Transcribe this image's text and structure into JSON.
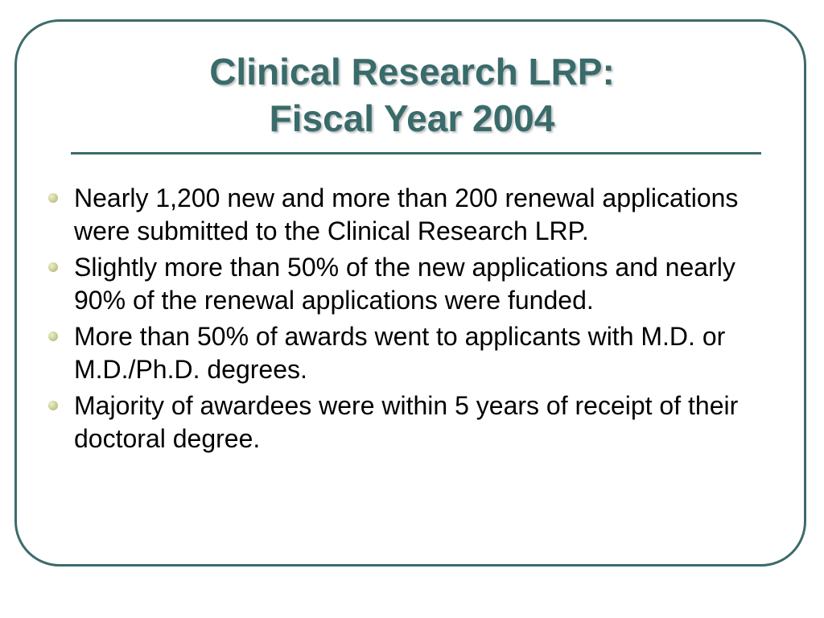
{
  "slide": {
    "title_line1": "Clinical Research LRP:",
    "title_line2": "Fiscal Year 2004",
    "accent_color": "#3a6b6b",
    "bullets": [
      {
        "text": "Nearly 1,200 new and more than 200 renewal applications were submitted to the Clinical Research LRP."
      },
      {
        "text": "Slightly more than 50% of the new applications and nearly 90% of the renewal applications were funded."
      },
      {
        "text": "More than 50% of awards went to applicants with M.D. or M.D./Ph.D. degrees."
      },
      {
        "text": "Majority of awardees were within 5 years of receipt of their doctoral degree."
      }
    ]
  }
}
